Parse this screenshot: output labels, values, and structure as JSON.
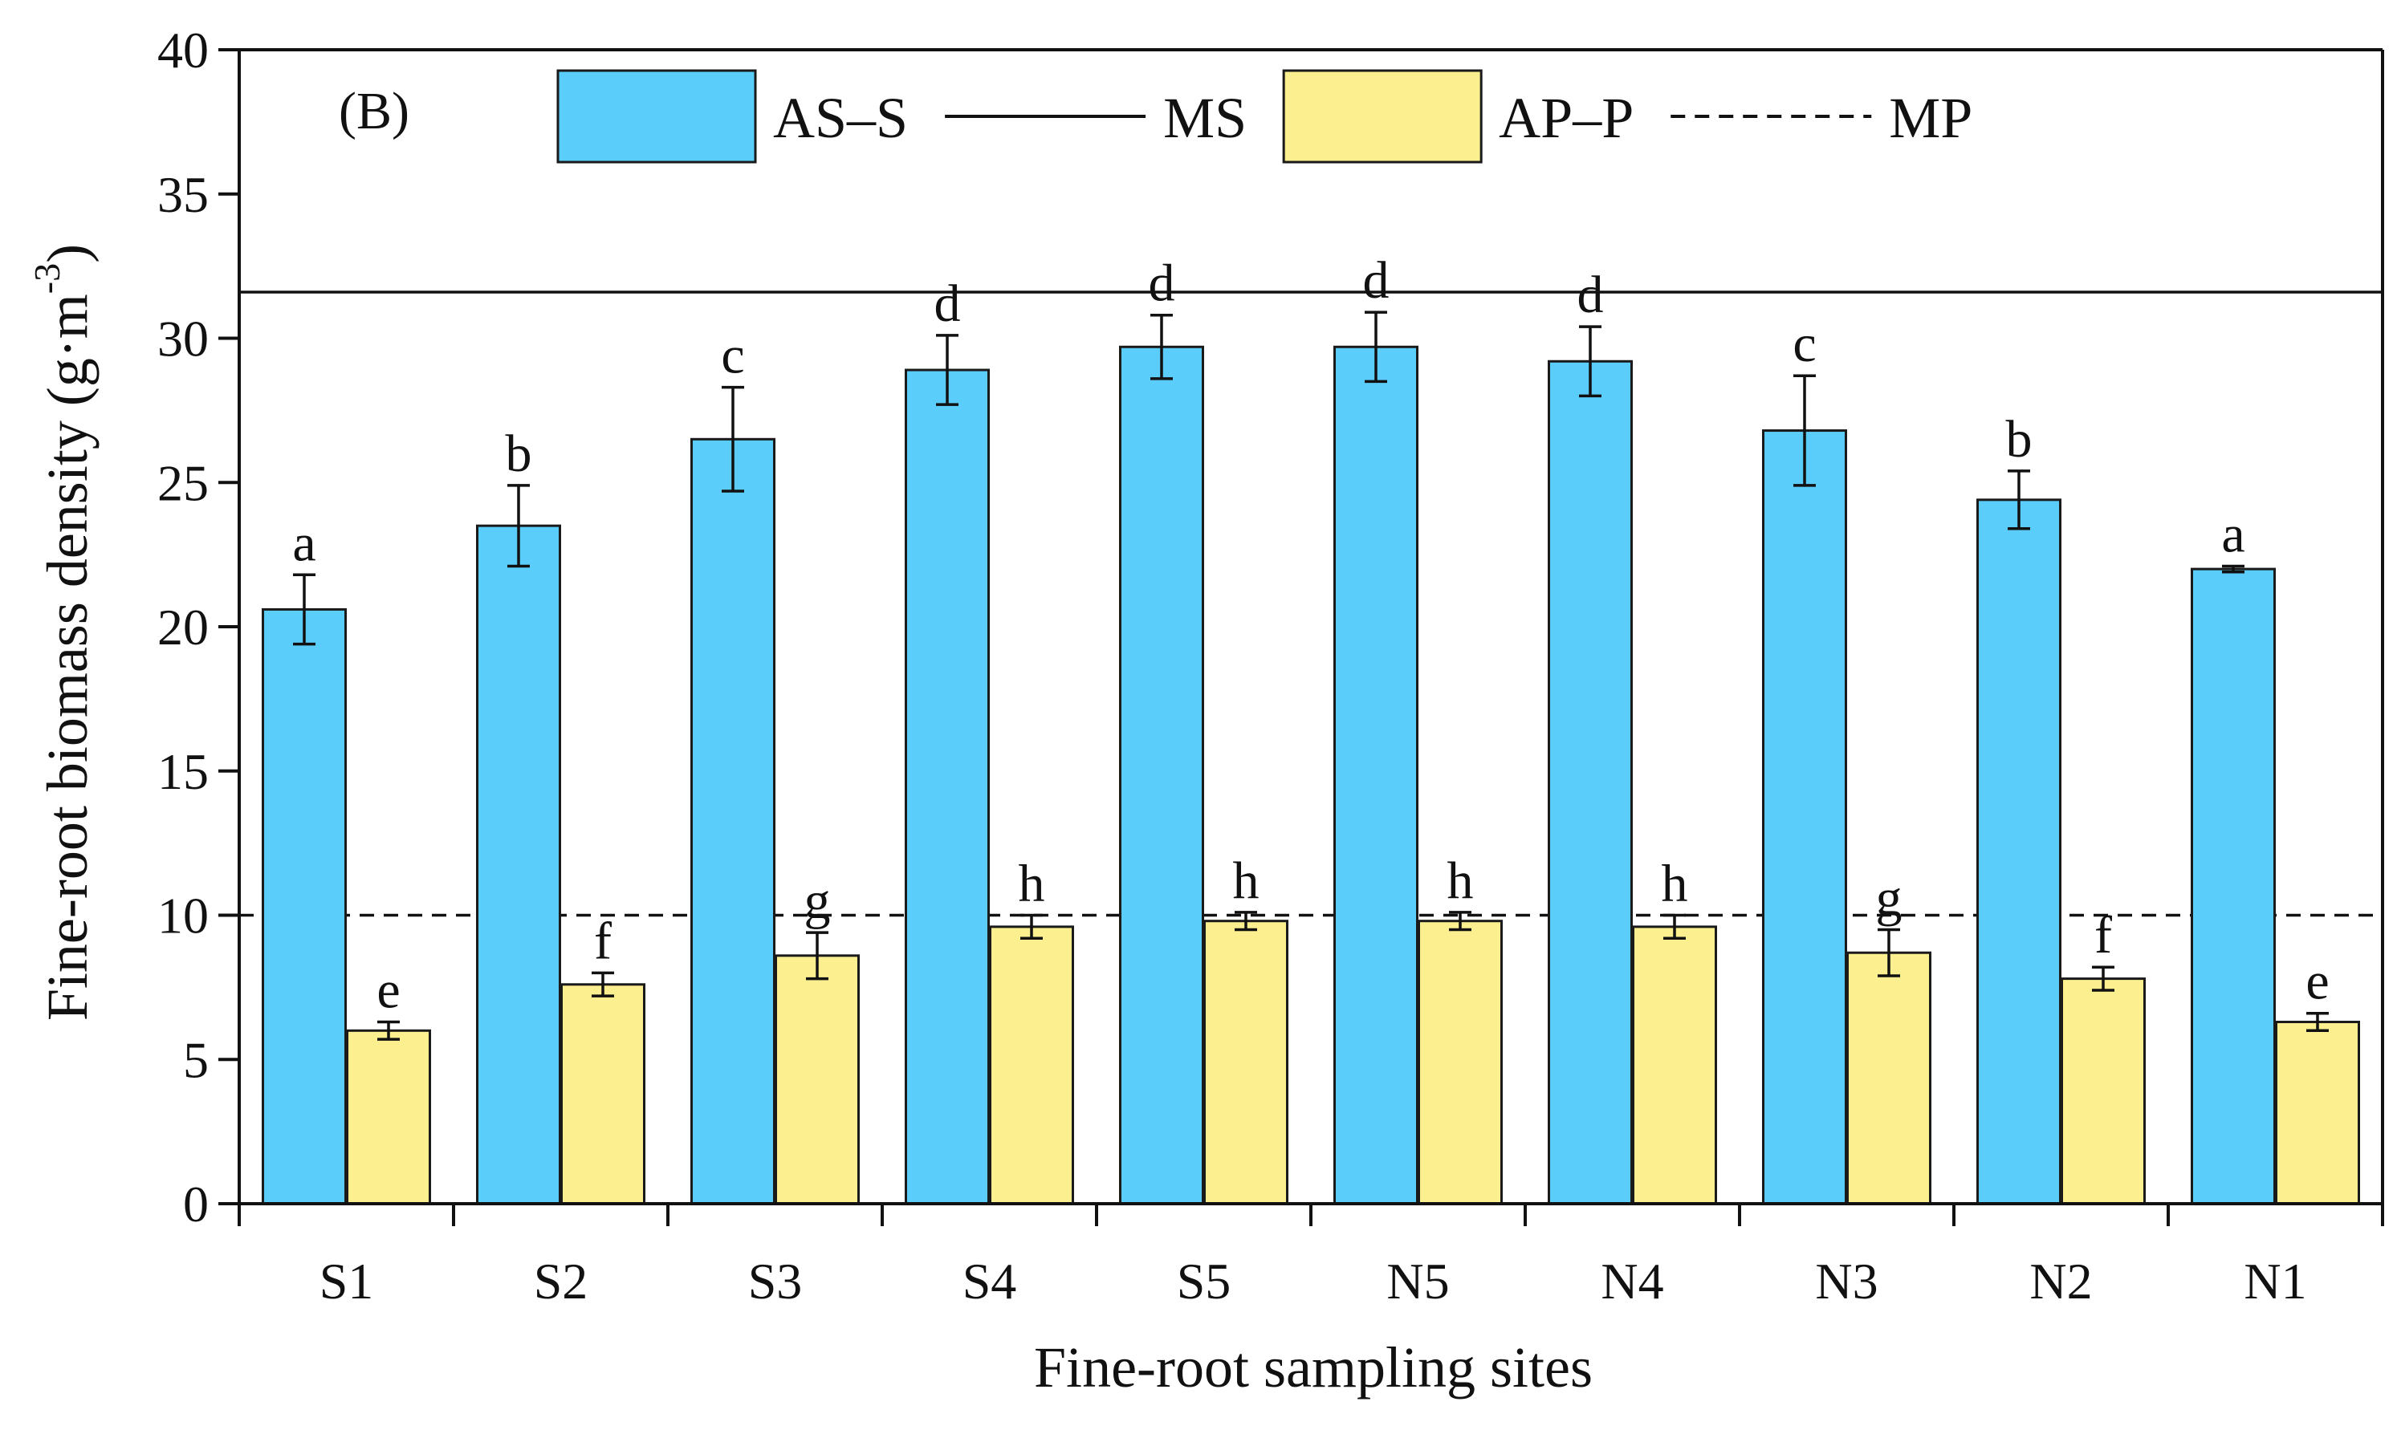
{
  "chart_data": {
    "type": "bar",
    "panel_label": "(B)",
    "xlabel": "Fine-root sampling sites",
    "ylabel": "Fine-root biomass density (g·m",
    "ylabel_superscript": "-3",
    "ylabel_close": ")",
    "ylim": [
      0,
      40
    ],
    "yticks": [
      0,
      5,
      10,
      15,
      20,
      25,
      30,
      35,
      40
    ],
    "categories": [
      "S1",
      "S2",
      "S3",
      "S4",
      "S5",
      "N5",
      "N4",
      "N3",
      "N2",
      "N1"
    ],
    "series": [
      {
        "name": "AS–S",
        "color": "#5bcdfa",
        "values": [
          20.6,
          23.5,
          26.5,
          28.9,
          29.7,
          29.7,
          29.2,
          26.8,
          24.4,
          22.0
        ],
        "errors": [
          1.2,
          1.4,
          1.8,
          1.2,
          1.1,
          1.2,
          1.2,
          1.9,
          1.0,
          0.1
        ],
        "letters": [
          "a",
          "b",
          "c",
          "d",
          "d",
          "d",
          "d",
          "c",
          "b",
          "a"
        ]
      },
      {
        "name": "AP–P",
        "color": "#fbef90",
        "values": [
          6.0,
          7.6,
          8.6,
          9.6,
          9.8,
          9.8,
          9.6,
          8.7,
          7.8,
          6.3
        ],
        "errors": [
          0.3,
          0.4,
          0.8,
          0.4,
          0.3,
          0.3,
          0.4,
          0.8,
          0.4,
          0.3
        ],
        "letters": [
          "e",
          "f",
          "g",
          "h",
          "h",
          "h",
          "h",
          "g",
          "f",
          "e"
        ]
      }
    ],
    "reference_lines": [
      {
        "name": "MS",
        "value": 31.6,
        "style": "solid"
      },
      {
        "name": "MP",
        "value": 10.0,
        "style": "dashed"
      }
    ],
    "legend": {
      "placement": "top",
      "entries": [
        {
          "label": "AS–S",
          "kind": "box",
          "color": "#5bcdfa"
        },
        {
          "label": "MS",
          "kind": "line-solid"
        },
        {
          "label": "AP–P",
          "kind": "box",
          "color": "#fbef90"
        },
        {
          "label": "MP",
          "kind": "line-dashed"
        }
      ]
    },
    "grid": false
  }
}
